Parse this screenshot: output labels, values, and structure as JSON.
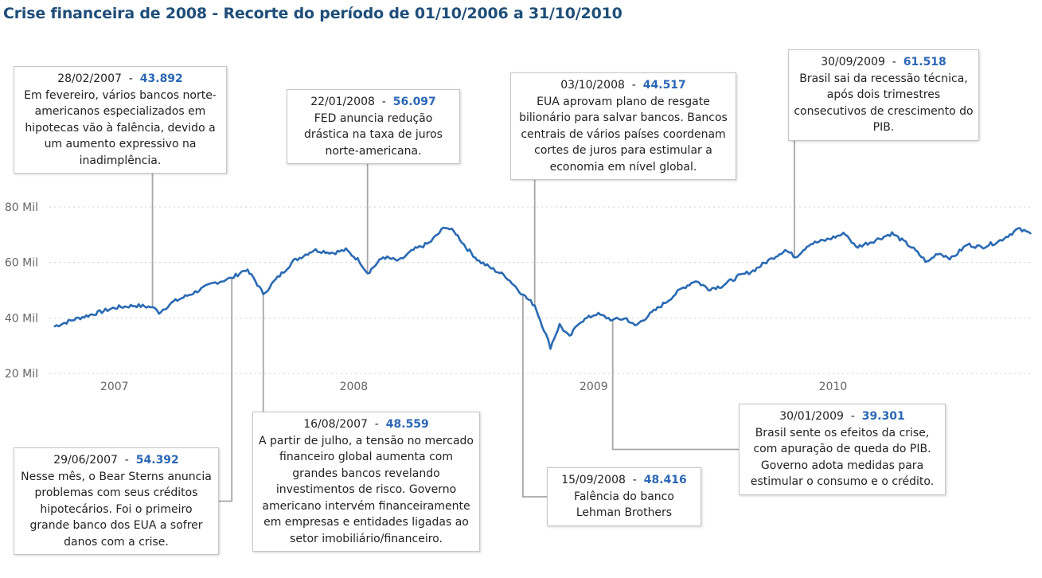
{
  "title": "Crise financeira de 2008 - Recorte do período de 01/10/2006 a 31/10/2010",
  "colors": {
    "line": "#2a6ab3",
    "value": "#2b67b5",
    "title": "#1f4e79",
    "connector": "#a6a6a6"
  },
  "chart_data": {
    "type": "line",
    "title": "Crise financeira de 2008 - Recorte do período de 01/10/2006 a 31/10/2010",
    "xlabel": "",
    "ylabel": "",
    "x_range": [
      "2006-10-01",
      "2010-10-31"
    ],
    "ylim": [
      20000,
      80000
    ],
    "grid": true,
    "y_ticks": [
      {
        "value": 80000,
        "label": "80 Mil"
      },
      {
        "value": 60000,
        "label": "60 Mil"
      },
      {
        "value": 40000,
        "label": "40 Mil"
      },
      {
        "value": 20000,
        "label": "20 Mil"
      }
    ],
    "x_ticks": [
      {
        "date": "2007-01-01",
        "label": "2007"
      },
      {
        "date": "2008-01-01",
        "label": "2008"
      },
      {
        "date": "2009-01-01",
        "label": "2009"
      },
      {
        "date": "2010-01-01",
        "label": "2010"
      }
    ],
    "points": [
      [
        "2006-10-02",
        37000
      ],
      [
        "2006-11-01",
        39500
      ],
      [
        "2006-12-01",
        41500
      ],
      [
        "2007-01-02",
        43700
      ],
      [
        "2007-02-01",
        44500
      ],
      [
        "2007-02-28",
        43892
      ],
      [
        "2007-03-10",
        42000
      ],
      [
        "2007-04-01",
        45800
      ],
      [
        "2007-05-01",
        49000
      ],
      [
        "2007-06-01",
        52500
      ],
      [
        "2007-06-29",
        54392
      ],
      [
        "2007-07-20",
        57500
      ],
      [
        "2007-08-01",
        54500
      ],
      [
        "2007-08-16",
        48559
      ],
      [
        "2007-09-01",
        53000
      ],
      [
        "2007-10-01",
        60500
      ],
      [
        "2007-11-01",
        64500
      ],
      [
        "2007-12-01",
        63500
      ],
      [
        "2007-12-20",
        64500
      ],
      [
        "2008-01-10",
        60500
      ],
      [
        "2008-01-22",
        56097
      ],
      [
        "2008-02-15",
        62000
      ],
      [
        "2008-03-10",
        60500
      ],
      [
        "2008-04-01",
        64500
      ],
      [
        "2008-04-25",
        67000
      ],
      [
        "2008-05-20",
        73000
      ],
      [
        "2008-06-05",
        70500
      ],
      [
        "2008-06-20",
        65500
      ],
      [
        "2008-07-10",
        60500
      ],
      [
        "2008-08-01",
        57500
      ],
      [
        "2008-08-20",
        55000
      ],
      [
        "2008-09-01",
        52000
      ],
      [
        "2008-09-15",
        48416
      ],
      [
        "2008-10-03",
        44517
      ],
      [
        "2008-10-20",
        34000
      ],
      [
        "2008-10-27",
        29500
      ],
      [
        "2008-11-10",
        37500
      ],
      [
        "2008-11-25",
        33000
      ],
      [
        "2008-12-10",
        38500
      ],
      [
        "2009-01-05",
        41500
      ],
      [
        "2009-01-30",
        39301
      ],
      [
        "2009-02-20",
        39800
      ],
      [
        "2009-03-05",
        37000
      ],
      [
        "2009-03-25",
        40800
      ],
      [
        "2009-04-20",
        45500
      ],
      [
        "2009-05-15",
        50500
      ],
      [
        "2009-06-05",
        53500
      ],
      [
        "2009-06-25",
        50500
      ],
      [
        "2009-07-15",
        51500
      ],
      [
        "2009-08-10",
        55000
      ],
      [
        "2009-09-01",
        57000
      ],
      [
        "2009-09-30",
        61518
      ],
      [
        "2009-10-20",
        64500
      ],
      [
        "2009-11-05",
        62000
      ],
      [
        "2009-11-25",
        66500
      ],
      [
        "2009-12-20",
        68000
      ],
      [
        "2010-01-20",
        70500
      ],
      [
        "2010-02-05",
        65500
      ],
      [
        "2010-03-01",
        67500
      ],
      [
        "2010-04-01",
        70500
      ],
      [
        "2010-05-01",
        65500
      ],
      [
        "2010-05-25",
        60000
      ],
      [
        "2010-06-10",
        63500
      ],
      [
        "2010-07-01",
        61500
      ],
      [
        "2010-07-25",
        66500
      ],
      [
        "2010-08-15",
        65500
      ],
      [
        "2010-09-10",
        67500
      ],
      [
        "2010-10-10",
        72000
      ],
      [
        "2010-10-29",
        70500
      ]
    ],
    "annotations": [
      {
        "date": "2007-02-28",
        "date_label": "28/02/2007",
        "value": 43892,
        "value_label": "43.892",
        "text": "Em fevereiro, vários bancos norte-americanos especializados em hipotecas vão à falência, devido a um aumento expressivo na inadimplência."
      },
      {
        "date": "2007-06-29",
        "date_label": "29/06/2007",
        "value": 54392,
        "value_label": "54.392",
        "text": "Nesse mês, o Bear Sterns anuncia problemas com seus créditos hipotecários. Foi o primeiro grande banco dos EUA a sofrer danos com a crise."
      },
      {
        "date": "2007-08-16",
        "date_label": "16/08/2007",
        "value": 48559,
        "value_label": "48.559",
        "text": "A partir de julho, a tensão no mercado financeiro global aumenta com grandes bancos revelando investimentos de risco. Governo americano intervém financeiramente em empresas e entidades ligadas ao setor imobiliário/financeiro."
      },
      {
        "date": "2008-01-22",
        "date_label": "22/01/2008",
        "value": 56097,
        "value_label": "56.097",
        "text": "FED anuncia redução drástica na taxa de juros norte-americana."
      },
      {
        "date": "2008-09-15",
        "date_label": "15/09/2008",
        "value": 48416,
        "value_label": "48.416",
        "text": "Falência do banco Lehman Brothers"
      },
      {
        "date": "2008-10-03",
        "date_label": "03/10/2008",
        "value": 44517,
        "value_label": "44.517",
        "text": "EUA aprovam plano de resgate bilionário para salvar bancos. Bancos centrais de vários países coordenam cortes de juros para estimular a economia em nível global."
      },
      {
        "date": "2009-01-30",
        "date_label": "30/01/2009",
        "value": 39301,
        "value_label": "39.301",
        "text": "Brasil sente os efeitos da crise, com apuração de queda do PIB. Governo adota medidas para estimular o consumo e o crédito."
      },
      {
        "date": "2009-09-30",
        "date_label": "30/09/2009",
        "value": 61518,
        "value_label": "61.518",
        "text": "Brasil sai da recessão técnica, após dois trimestres consecutivos de crescimento do PIB."
      }
    ]
  }
}
